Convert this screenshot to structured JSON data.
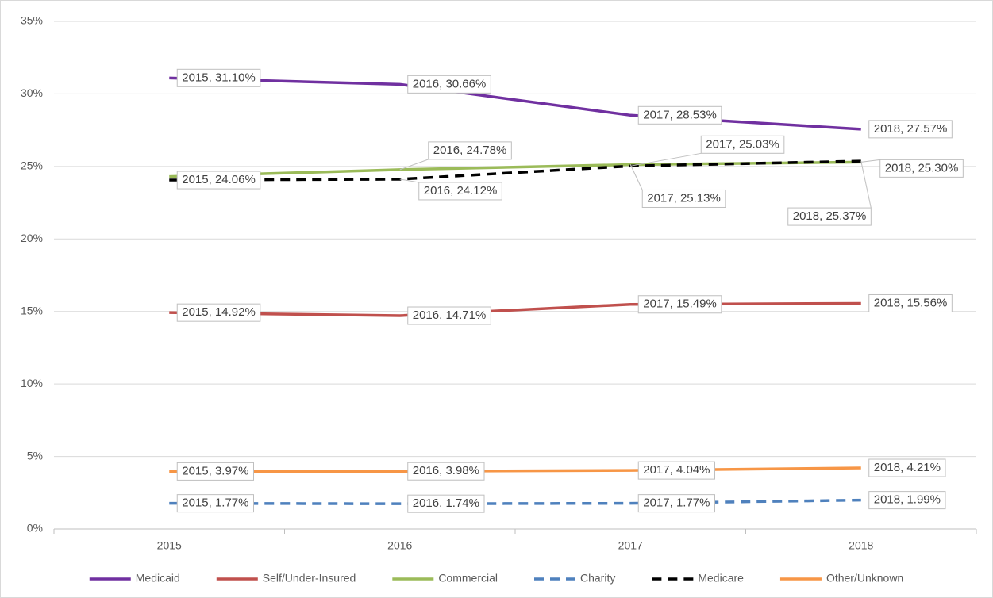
{
  "chart_data": {
    "type": "line",
    "categories": [
      "2015",
      "2016",
      "2017",
      "2018"
    ],
    "series": [
      {
        "name": "Medicaid",
        "color": "#7030a0",
        "dashed": false,
        "values": [
          31.1,
          30.66,
          28.53,
          27.57
        ],
        "value_labels": [
          "2015, 31.10%",
          "2016, 30.66%",
          "2017, 28.53%",
          "2018, 27.57%"
        ]
      },
      {
        "name": "Self/Under-Insured",
        "color": "#c0504d",
        "dashed": false,
        "values": [
          14.92,
          14.71,
          15.49,
          15.56
        ],
        "value_labels": [
          "2015, 14.92%",
          "2016, 14.71%",
          "2017, 15.49%",
          "2018, 15.56%"
        ]
      },
      {
        "name": "Commercial",
        "color": "#9bbb59",
        "dashed": false,
        "values": [
          24.3,
          24.78,
          25.13,
          25.3
        ],
        "value_labels": [
          null,
          "2016, 24.78%",
          "2017, 25.13%",
          "2018, 25.30%"
        ]
      },
      {
        "name": "Charity",
        "color": "#4f81bd",
        "dashed": true,
        "values": [
          1.77,
          1.74,
          1.77,
          1.99
        ],
        "value_labels": [
          "2015, 1.77%",
          "2016, 1.74%",
          "2017, 1.77%",
          "2018, 1.99%"
        ]
      },
      {
        "name": "Medicare",
        "color": "#000000",
        "dashed": true,
        "values": [
          24.06,
          24.12,
          25.03,
          25.37
        ],
        "value_labels": [
          "2015, 24.06%",
          "2016, 24.12%",
          "2017, 25.03%",
          "2018, 25.37%"
        ]
      },
      {
        "name": "Other/Unknown",
        "color": "#f79646",
        "dashed": false,
        "values": [
          3.97,
          3.98,
          4.04,
          4.21
        ],
        "value_labels": [
          "2015, 3.97%",
          "2016, 3.98%",
          "2017, 4.04%",
          "2018, 4.21%"
        ]
      }
    ],
    "ylim": [
      0,
      35
    ],
    "yticks": [
      {
        "value": 0,
        "label": "0%"
      },
      {
        "value": 5,
        "label": "5%"
      },
      {
        "value": 10,
        "label": "10%"
      },
      {
        "value": 15,
        "label": "15%"
      },
      {
        "value": 20,
        "label": "20%"
      },
      {
        "value": 25,
        "label": "25%"
      },
      {
        "value": 30,
        "label": "30%"
      },
      {
        "value": 35,
        "label": "35%"
      }
    ],
    "grid": true,
    "legend": "bottom"
  }
}
